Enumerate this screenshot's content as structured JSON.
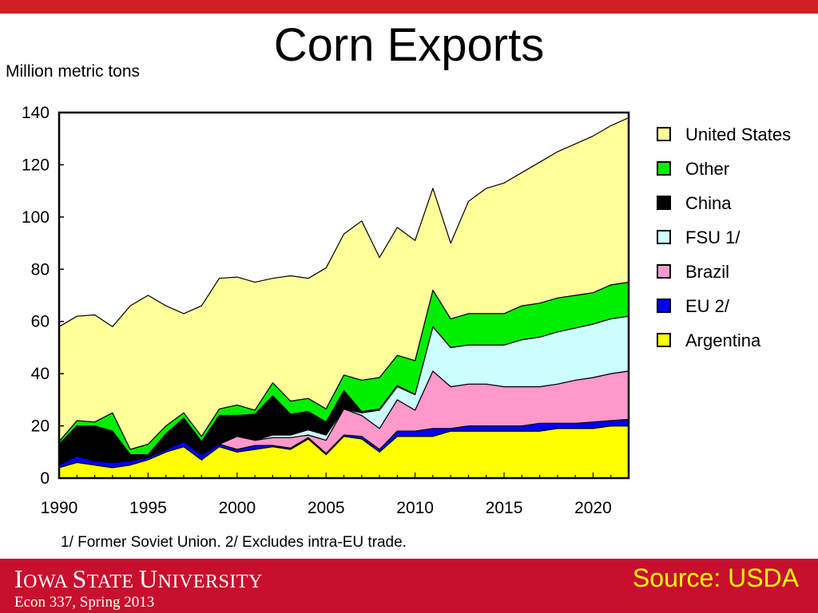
{
  "slide": {
    "title": "Corn Exports",
    "footnote": "1/ Former Soviet Union.  2/ Excludes intra-EU trade.",
    "source": "Source: USDA",
    "university_part1": "I",
    "university_part2": "OWA ",
    "university_part3": "S",
    "university_part4": "TATE ",
    "university_part5": "U",
    "university_part6": "NIVERSITY",
    "course": "Econ 337, Spring 2013"
  },
  "colors": {
    "top_band": "#d21f26",
    "footer": "#c8102e",
    "source_text": "#ffff00"
  },
  "chart_data": {
    "type": "area",
    "stacked": true,
    "ylabel": "Million metric tons",
    "xlim": [
      1990,
      2022
    ],
    "ylim": [
      0,
      140
    ],
    "yticks": [
      0,
      20,
      40,
      60,
      80,
      100,
      120,
      140
    ],
    "xticks": [
      1990,
      1995,
      2000,
      2005,
      2010,
      2015,
      2020
    ],
    "legend_position": "right",
    "x": [
      1990,
      1991,
      1992,
      1993,
      1994,
      1995,
      1996,
      1997,
      1998,
      1999,
      2000,
      2001,
      2002,
      2003,
      2004,
      2005,
      2006,
      2007,
      2008,
      2009,
      2010,
      2011,
      2012,
      2013,
      2014,
      2015,
      2016,
      2017,
      2018,
      2019,
      2020,
      2021,
      2022
    ],
    "series": [
      {
        "name": "Argentina",
        "color": "#ffff00",
        "values": [
          4,
          6,
          5,
          4,
          5,
          7,
          10,
          12,
          7,
          12,
          10,
          11,
          12,
          11,
          15,
          9,
          16,
          15,
          10,
          16,
          16,
          16,
          18,
          18,
          18,
          18,
          18,
          18,
          19,
          19,
          19,
          20,
          20
        ]
      },
      {
        "name": "EU 2/",
        "color": "#0000ff",
        "values": [
          1,
          2.5,
          1.5,
          2,
          1.5,
          1,
          1,
          2,
          2,
          1,
          1,
          1.5,
          0.5,
          0.5,
          0.5,
          0.5,
          0.5,
          1,
          1,
          2,
          2,
          3,
          1,
          2,
          2,
          2,
          2,
          3,
          2,
          2,
          2.5,
          2,
          2.5
        ]
      },
      {
        "name": "Brazil",
        "color": "#ff99cc",
        "values": [
          0,
          0,
          0,
          0,
          0,
          0,
          0,
          0,
          0,
          0,
          5,
          2,
          3,
          4,
          1,
          5,
          10,
          8,
          8,
          12,
          8,
          22,
          16,
          16,
          16,
          15,
          15,
          14,
          15,
          16.5,
          17,
          18,
          18.5
        ]
      },
      {
        "name": "FSU 1/",
        "color": "#ccffff",
        "values": [
          0,
          0,
          0,
          0,
          0,
          0,
          0,
          0,
          0,
          0,
          0,
          0,
          1,
          1,
          2,
          2,
          0,
          1,
          7,
          5,
          6,
          17,
          15,
          15,
          15,
          16,
          18,
          19,
          20,
          20,
          20.5,
          21,
          21
        ]
      },
      {
        "name": "China",
        "color": "#000000",
        "values": [
          8,
          11.5,
          13.5,
          12,
          2.5,
          1,
          6,
          9,
          5,
          11,
          8,
          10,
          15,
          8,
          7,
          5,
          7,
          0.5,
          0.5,
          0.5,
          0,
          0,
          0,
          0,
          0,
          0,
          0,
          0,
          0,
          0,
          0,
          0,
          0
        ]
      },
      {
        "name": "Other",
        "color": "#00ee00",
        "values": [
          1,
          2,
          1.5,
          7,
          2,
          4,
          3,
          2,
          2,
          2.5,
          4,
          1.5,
          5,
          5,
          5,
          5,
          6,
          12,
          12,
          11.5,
          13,
          14,
          11,
          12,
          12,
          12,
          13,
          13,
          13,
          12.5,
          12,
          13,
          13
        ]
      },
      {
        "name": "United States",
        "color": "#ffff99",
        "values": [
          44,
          40,
          41,
          33,
          55,
          57,
          46,
          38,
          50,
          50,
          49,
          49,
          40,
          48,
          46,
          54,
          54,
          61,
          46,
          49,
          46,
          39,
          29,
          43,
          48,
          50,
          51,
          54,
          56,
          58,
          60,
          61,
          63
        ]
      }
    ],
    "legend_order": [
      "United States",
      "Other",
      "China",
      "FSU 1/",
      "Brazil",
      "EU 2/",
      "Argentina"
    ]
  }
}
